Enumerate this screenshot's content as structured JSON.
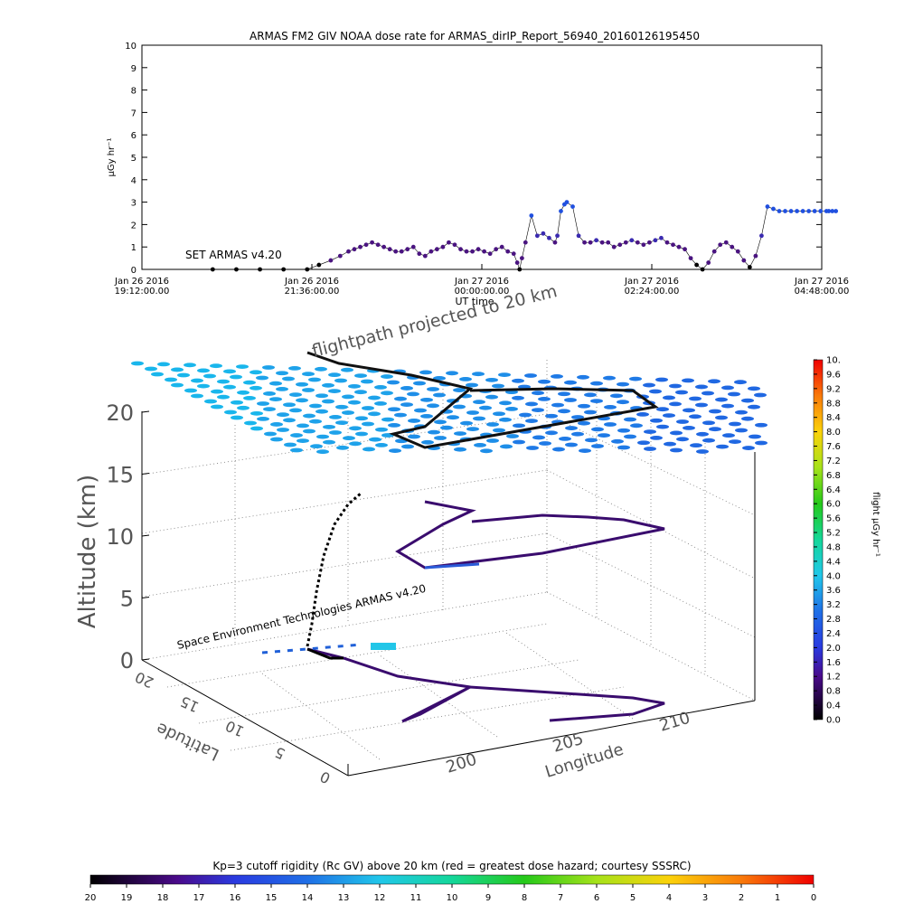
{
  "chart_data": [
    {
      "type": "scatter",
      "title": "ARMAS FM2 GIV NOAA  dose rate for ARMAS_dirIP_Report_56940_20160126195450",
      "xlabel": "UT time",
      "ylabel": "μGy hr⁻¹",
      "ylim": [
        0,
        10
      ],
      "yticks": [
        "0",
        "1",
        "2",
        "3",
        "4",
        "5",
        "6",
        "7",
        "8",
        "9",
        "10"
      ],
      "xticks": [
        {
          "date": "Jan 26 2016",
          "time": "19:12:00.00"
        },
        {
          "date": "Jan 26 2016",
          "time": "21:36:00.00"
        },
        {
          "date": "Jan 27 2016",
          "time": "00:00:00.00"
        },
        {
          "date": "Jan 27 2016",
          "time": "02:24:00.00"
        },
        {
          "date": "Jan 27 2016",
          "time": "04:48:00.00"
        }
      ],
      "annotation": "SET ARMAS v4.20",
      "x_unit": "minutes after Jan 26 2016 19:12",
      "x": [
        60,
        80,
        100,
        120,
        140,
        150,
        160,
        168,
        175,
        180,
        185,
        190,
        195,
        200,
        205,
        210,
        215,
        220,
        225,
        230,
        235,
        240,
        245,
        250,
        255,
        260,
        265,
        270,
        275,
        280,
        285,
        290,
        295,
        300,
        305,
        310,
        315,
        318,
        320,
        322,
        325,
        330,
        335,
        340,
        345,
        350,
        352,
        355,
        358,
        360,
        365,
        370,
        375,
        380,
        385,
        390,
        395,
        400,
        405,
        410,
        415,
        420,
        425,
        430,
        435,
        440,
        445,
        450,
        455,
        460,
        465,
        470,
        475,
        480,
        485,
        490,
        495,
        500,
        505,
        510,
        515,
        520,
        525,
        530,
        535,
        540,
        545,
        550,
        555,
        560,
        565,
        570,
        575,
        580,
        582,
        585,
        588
      ],
      "values": [
        0,
        0,
        0,
        0,
        0,
        0.2,
        0.4,
        0.6,
        0.8,
        0.9,
        1.0,
        1.1,
        1.2,
        1.1,
        1.0,
        0.9,
        0.8,
        0.8,
        0.9,
        1.0,
        0.7,
        0.6,
        0.8,
        0.9,
        1.0,
        1.2,
        1.1,
        0.9,
        0.8,
        0.8,
        0.9,
        0.8,
        0.7,
        0.9,
        1.0,
        0.8,
        0.7,
        0.3,
        0.0,
        0.5,
        1.2,
        2.4,
        1.5,
        1.6,
        1.4,
        1.2,
        1.5,
        2.6,
        2.9,
        3.0,
        2.8,
        1.5,
        1.2,
        1.2,
        1.3,
        1.2,
        1.2,
        1.0,
        1.1,
        1.2,
        1.3,
        1.2,
        1.1,
        1.2,
        1.3,
        1.4,
        1.2,
        1.1,
        1.0,
        0.9,
        0.5,
        0.2,
        0.0,
        0.3,
        0.8,
        1.1,
        1.2,
        1.0,
        0.8,
        0.4,
        0.1,
        0.6,
        1.5,
        2.8,
        2.7,
        2.6,
        2.6,
        2.6,
        2.6,
        2.6,
        2.6,
        2.6,
        2.6,
        2.6,
        2.6,
        2.6,
        2.6
      ]
    },
    {
      "type": "scatter",
      "title": "flightpath projected to 20 km",
      "zlabel": "Altitude (km)",
      "zticks": [
        "0",
        "5",
        "10",
        "15",
        "20"
      ],
      "ylabel": "Latitude",
      "yticks": [
        "0",
        "5",
        "10",
        "15",
        "20"
      ],
      "xlabel": "Longitude",
      "xticks": [
        "200",
        "205",
        "210"
      ],
      "annotation": "Space Environment Technologies ARMAS v4.20",
      "colorbar": {
        "label": "flight μGy hr⁻¹",
        "ticks": [
          "0.0",
          "0.4",
          "0.8",
          "1.2",
          "1.6",
          "2.0",
          "2.4",
          "2.8",
          "3.2",
          "3.6",
          "4.0",
          "4.4",
          "4.8",
          "5.2",
          "5.6",
          "6.0",
          "6.4",
          "6.8",
          "7.2",
          "7.6",
          "8.0",
          "8.4",
          "8.8",
          "9.2",
          "9.6",
          "10."
        ]
      }
    }
  ],
  "bottom_colorbar": {
    "title": "Kp=3 cutoff rigidity (Rc GV) above 20 km (red = greatest dose hazard; courtesy SSSRC)",
    "ticks": [
      "20",
      "19",
      "18",
      "17",
      "16",
      "15",
      "14",
      "13",
      "12",
      "11",
      "10",
      "9",
      "8",
      "7",
      "6",
      "5",
      "4",
      "3",
      "2",
      "1",
      "0"
    ]
  }
}
